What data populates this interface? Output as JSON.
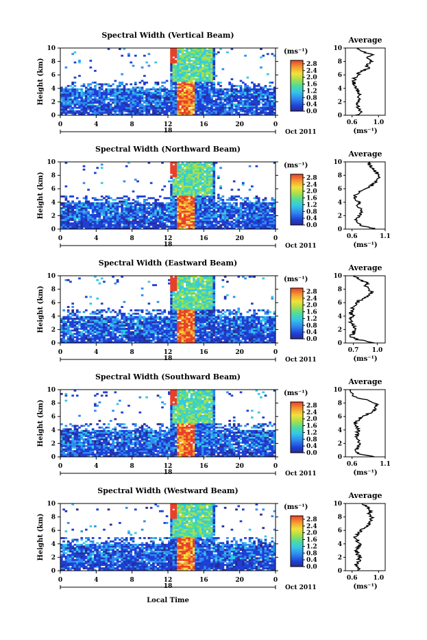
{
  "chart_data": {
    "type": "heatmap",
    "x_axis_label": "Local Time",
    "y_axis_label": "Height (km)",
    "x_ticks": [
      "0",
      "4",
      "8",
      "12",
      "16",
      "20",
      "0"
    ],
    "xlim": [
      0,
      24
    ],
    "y_ticks": [
      "0",
      "2",
      "4",
      "6",
      "8",
      "10"
    ],
    "ylim": [
      0,
      10
    ],
    "date_day": "18",
    "date_month_year": "Oct 2011",
    "colorbar_unit": "(ms⁻¹)",
    "colorbar_ticks": [
      "2.8",
      "2.4",
      "2.0",
      "1.6",
      "1.2",
      "0.8",
      "0.4",
      "0.0"
    ],
    "colorbar_range": [
      0,
      3.0
    ],
    "profile_title": "Average",
    "profile_unit": "(ms⁻¹)",
    "colors": [
      "#2b2b8f",
      "#1f3fd6",
      "#2f8cf0",
      "#35c8e6",
      "#4fdc9a",
      "#a8e04a",
      "#f2e23a",
      "#f5a030",
      "#e8402a"
    ],
    "panels": [
      {
        "title": "Spectral Width (Vertical Beam)",
        "profile_xticks": [
          "0.6",
          "1.0"
        ],
        "profile_xlim": [
          0.5,
          1.1
        ],
        "profile": [
          [
            0.0,
            0.66
          ],
          [
            0.5,
            0.72
          ],
          [
            1.0,
            0.7
          ],
          [
            1.5,
            0.68
          ],
          [
            2.0,
            0.69
          ],
          [
            2.5,
            0.7
          ],
          [
            3.0,
            0.72
          ],
          [
            3.5,
            0.69
          ],
          [
            4.0,
            0.66
          ],
          [
            4.5,
            0.64
          ],
          [
            5.0,
            0.62
          ],
          [
            5.5,
            0.64
          ],
          [
            6.0,
            0.68
          ],
          [
            6.5,
            0.73
          ],
          [
            7.0,
            0.86
          ],
          [
            7.5,
            0.8
          ],
          [
            8.0,
            0.92
          ],
          [
            8.5,
            0.84
          ],
          [
            9.0,
            0.9
          ],
          [
            9.5,
            0.75
          ],
          [
            10.0,
            0.7
          ]
        ]
      },
      {
        "title": "Spectral Width (Northward Beam)",
        "profile_xticks": [
          "0.6",
          "1.1"
        ],
        "profile_xlim": [
          0.5,
          1.1
        ],
        "profile": [
          [
            0.0,
            0.95
          ],
          [
            0.5,
            0.75
          ],
          [
            1.0,
            0.68
          ],
          [
            1.5,
            0.66
          ],
          [
            2.0,
            0.7
          ],
          [
            2.5,
            0.74
          ],
          [
            3.0,
            0.72
          ],
          [
            3.5,
            0.68
          ],
          [
            4.0,
            0.7
          ],
          [
            4.5,
            0.66
          ],
          [
            5.0,
            0.64
          ],
          [
            5.5,
            0.7
          ],
          [
            6.0,
            0.8
          ],
          [
            6.5,
            0.9
          ],
          [
            7.0,
            0.95
          ],
          [
            7.5,
            1.0
          ],
          [
            8.0,
            1.02
          ],
          [
            8.5,
            0.96
          ],
          [
            9.0,
            0.9
          ],
          [
            9.5,
            0.88
          ],
          [
            10.0,
            0.85
          ]
        ]
      },
      {
        "title": "Spectral Width (Eastward Beam)",
        "profile_xticks": [
          "0.7",
          "1.0"
        ],
        "profile_xlim": [
          0.6,
          1.1
        ],
        "profile": [
          [
            0.0,
            0.98
          ],
          [
            0.5,
            0.75
          ],
          [
            1.0,
            0.66
          ],
          [
            1.5,
            0.7
          ],
          [
            2.0,
            0.72
          ],
          [
            2.5,
            0.7
          ],
          [
            3.0,
            0.68
          ],
          [
            3.5,
            0.66
          ],
          [
            4.0,
            0.7
          ],
          [
            4.5,
            0.67
          ],
          [
            5.0,
            0.68
          ],
          [
            5.5,
            0.72
          ],
          [
            6.0,
            0.74
          ],
          [
            6.5,
            0.8
          ],
          [
            7.0,
            0.88
          ],
          [
            7.5,
            0.94
          ],
          [
            8.0,
            0.9
          ],
          [
            8.5,
            0.84
          ],
          [
            9.0,
            0.88
          ],
          [
            9.5,
            0.76
          ],
          [
            10.0,
            0.72
          ]
        ]
      },
      {
        "title": "Spectral Width (Southward Beam)",
        "profile_xticks": [
          "0.6",
          "1.1"
        ],
        "profile_xlim": [
          0.5,
          1.1
        ],
        "profile": [
          [
            0.0,
            0.95
          ],
          [
            0.5,
            0.7
          ],
          [
            1.0,
            0.66
          ],
          [
            1.5,
            0.7
          ],
          [
            2.0,
            0.72
          ],
          [
            2.5,
            0.69
          ],
          [
            3.0,
            0.66
          ],
          [
            3.5,
            0.68
          ],
          [
            4.0,
            0.7
          ],
          [
            4.5,
            0.66
          ],
          [
            5.0,
            0.64
          ],
          [
            5.5,
            0.7
          ],
          [
            6.0,
            0.76
          ],
          [
            6.5,
            0.86
          ],
          [
            7.0,
            0.94
          ],
          [
            7.5,
            0.98
          ],
          [
            8.0,
            0.95
          ],
          [
            8.5,
            0.8
          ],
          [
            9.0,
            0.62
          ],
          [
            9.5,
            0.58
          ],
          [
            10.0,
            0.56
          ]
        ]
      },
      {
        "title": "Spectral Width (Westward Beam)",
        "profile_xticks": [
          "0.6",
          "1.0"
        ],
        "profile_xlim": [
          0.5,
          1.1
        ],
        "profile": [
          [
            0.0,
            0.72
          ],
          [
            0.5,
            0.68
          ],
          [
            1.0,
            0.66
          ],
          [
            1.5,
            0.7
          ],
          [
            2.0,
            0.72
          ],
          [
            2.5,
            0.68
          ],
          [
            3.0,
            0.66
          ],
          [
            3.5,
            0.7
          ],
          [
            4.0,
            0.72
          ],
          [
            4.5,
            0.68
          ],
          [
            5.0,
            0.64
          ],
          [
            5.5,
            0.7
          ],
          [
            6.0,
            0.74
          ],
          [
            6.5,
            0.8
          ],
          [
            7.0,
            0.86
          ],
          [
            7.5,
            0.88
          ],
          [
            8.0,
            0.9
          ],
          [
            8.5,
            0.85
          ],
          [
            9.0,
            0.88
          ],
          [
            9.5,
            0.82
          ],
          [
            10.0,
            0.75
          ]
        ]
      }
    ]
  }
}
